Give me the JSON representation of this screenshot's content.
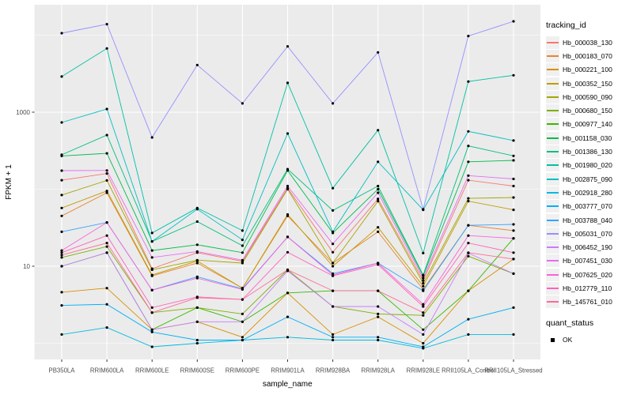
{
  "chart_data": {
    "type": "line",
    "xlabel": "sample_name",
    "ylabel": "FPKM + 1",
    "yscale": "log10",
    "ylim": [
      0.6,
      25000
    ],
    "grid": true,
    "panel_bg": "#EBEBEB",
    "grid_color": "#FFFFFF",
    "axis_text_color": "#4D4D4D",
    "marker": "black-point",
    "y_ticks": [
      {
        "label": "1000",
        "value": 1000
      },
      {
        "label": "10",
        "value": 10
      }
    ],
    "y_minor_gridlines": [
      10000,
      100,
      1
    ],
    "categories": [
      "PB350LA",
      "RRIM600LA",
      "RRIM600LE",
      "RRIM600SE",
      "RRIM600PE",
      "RRIM901LA",
      "RRIM928BA",
      "RRIM928LA",
      "RRIM928LE",
      "RRII105LA_Control",
      "RRII105LA_Stressed"
    ],
    "legend": {
      "title": "tracking_id",
      "position": "right"
    },
    "quant_legend": {
      "title": "quant_status",
      "items": [
        "OK"
      ],
      "marker_color": "#000000"
    },
    "series": [
      {
        "name": "Hb_000038_130",
        "color": "#F8766D",
        "values": [
          131,
          160,
          9.3,
          15,
          11.6,
          103,
          15.2,
          75,
          6.5,
          131,
          110
        ]
      },
      {
        "name": "Hb_000183_070",
        "color": "#EA8331",
        "values": [
          45,
          90,
          7.5,
          11,
          5.2,
          45,
          11,
          28,
          5,
          34,
          29
        ]
      },
      {
        "name": "Hb_000221_100",
        "color": "#D89000",
        "values": [
          4.6,
          5.2,
          1.5,
          1.9,
          1.2,
          4.5,
          1.3,
          2.2,
          1.0,
          4.8,
          12.4
        ]
      },
      {
        "name": "Hb_000352_150",
        "color": "#C09B00",
        "values": [
          57,
          95,
          7.7,
          11.7,
          5.2,
          47,
          10,
          32,
          5.5,
          70,
          54
        ]
      },
      {
        "name": "Hb_000590_090",
        "color": "#A3A500",
        "values": [
          84,
          130,
          9,
          12,
          11,
          100,
          11,
          70,
          6,
          76,
          78
        ]
      },
      {
        "name": "Hb_000680_150",
        "color": "#7CAE00",
        "values": [
          13,
          18,
          2.5,
          2.9,
          2.4,
          9,
          3,
          2.4,
          2.3,
          13.5,
          8
        ]
      },
      {
        "name": "Hb_000977_140",
        "color": "#39B600",
        "values": [
          10,
          15,
          1.5,
          2.9,
          1.9,
          4.5,
          4.8,
          4.8,
          1.5,
          4.8,
          23
        ]
      },
      {
        "name": "Hb_001158_030",
        "color": "#00BB4E",
        "values": [
          270,
          292,
          16,
          19,
          15,
          175,
          27,
          100,
          7.5,
          227,
          237
        ]
      },
      {
        "name": "Hb_001386_130",
        "color": "#00BF7D",
        "values": [
          280,
          504,
          21,
          38,
          18.5,
          182,
          53,
          110,
          7.7,
          365,
          271
        ]
      },
      {
        "name": "Hb_001980_020",
        "color": "#00C1A3",
        "values": [
          2900,
          6730,
          27,
          57,
          29,
          2400,
          103,
          584,
          14.8,
          2500,
          3010
        ]
      },
      {
        "name": "Hb_002875_090",
        "color": "#00BFC4",
        "values": [
          735,
          1100,
          21,
          55,
          22,
          528,
          28,
          227,
          54,
          563,
          428
        ]
      },
      {
        "name": "Hb_002918_280",
        "color": "#00BAE0",
        "values": [
          1.3,
          1.6,
          0.9,
          1.0,
          1.1,
          1.2,
          1.1,
          1.1,
          0.86,
          1.3,
          1.3
        ]
      },
      {
        "name": "Hb_003777_070",
        "color": "#00B0F6",
        "values": [
          3.1,
          3.2,
          1.4,
          1.1,
          1.1,
          2.2,
          1.2,
          1.2,
          0.9,
          2.05,
          2.9
        ]
      },
      {
        "name": "Hb_003788_040",
        "color": "#35A2FF",
        "values": [
          28,
          37,
          4.9,
          7.3,
          5.1,
          24,
          8,
          11,
          4.8,
          34,
          35
        ]
      },
      {
        "name": "Hb_005031_070",
        "color": "#9590FF",
        "values": [
          10600,
          13900,
          470,
          4100,
          1300,
          7150,
          1300,
          5980,
          55,
          9750,
          15100
        ]
      },
      {
        "name": "Hb_006452_190",
        "color": "#C77CFF",
        "values": [
          10,
          15,
          1.5,
          1.9,
          1.9,
          8.7,
          3,
          3,
          1.3,
          14.8,
          8
        ]
      },
      {
        "name": "Hb_007451_030",
        "color": "#E76BF3",
        "values": [
          174,
          175,
          13,
          15.5,
          12,
          110,
          19.5,
          90,
          7,
          150,
          136
        ]
      },
      {
        "name": "Hb_007625_020",
        "color": "#FA62DB",
        "values": [
          16,
          37,
          4.9,
          7,
          5,
          24,
          7.7,
          11,
          3.2,
          25,
          23
        ]
      },
      {
        "name": "Hb_012779_110",
        "color": "#FF62BC",
        "values": [
          15,
          25,
          2.9,
          4,
          3.7,
          15.2,
          7.5,
          10.5,
          3,
          20,
          15
        ]
      },
      {
        "name": "Hb_145761_010",
        "color": "#FF6A98",
        "values": [
          14,
          20,
          2.5,
          3.9,
          3.7,
          9,
          4.8,
          4.8,
          2.5,
          15,
          12.4
        ]
      }
    ]
  }
}
